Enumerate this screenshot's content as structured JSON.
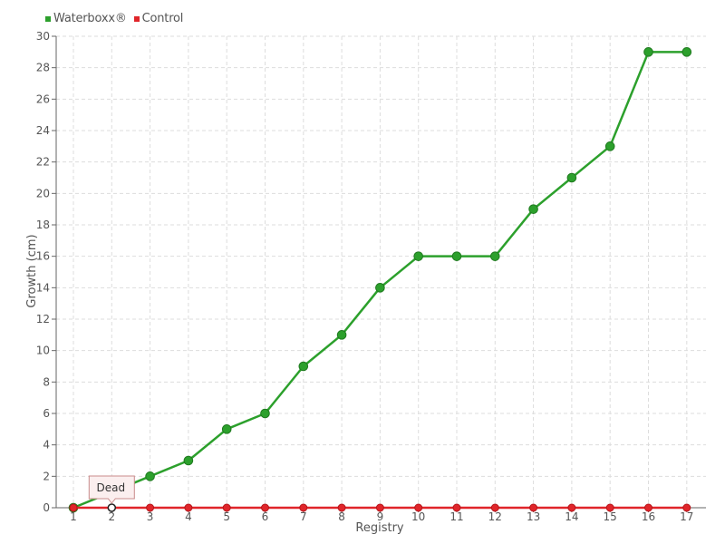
{
  "chart_data": {
    "type": "line",
    "x": [
      "1",
      "2",
      "3",
      "4",
      "5",
      "6",
      "7",
      "8",
      "9",
      "10",
      "11",
      "12",
      "13",
      "14",
      "15",
      "16",
      "17"
    ],
    "series": [
      {
        "name": "Waterboxx®",
        "color": "#2ca02c",
        "values": [
          0,
          1,
          2,
          3,
          5,
          6,
          9,
          11,
          14,
          16,
          16,
          16,
          19,
          21,
          23,
          29,
          29
        ]
      },
      {
        "name": "Control",
        "color": "#e0252a",
        "values": [
          0,
          0,
          0,
          0,
          0,
          0,
          0,
          0,
          0,
          0,
          0,
          0,
          0,
          0,
          0,
          0,
          0
        ]
      }
    ],
    "xlabel": "Registry",
    "ylabel": "Growth (cm)",
    "ylim": [
      0,
      30
    ],
    "yticks": [
      0,
      2,
      4,
      6,
      8,
      10,
      12,
      14,
      16,
      18,
      20,
      22,
      24,
      26,
      28,
      30
    ],
    "grid": true,
    "legend_position": "top-left",
    "annotations": [
      {
        "text": "Dead",
        "series": "Control",
        "x": "2"
      }
    ]
  }
}
